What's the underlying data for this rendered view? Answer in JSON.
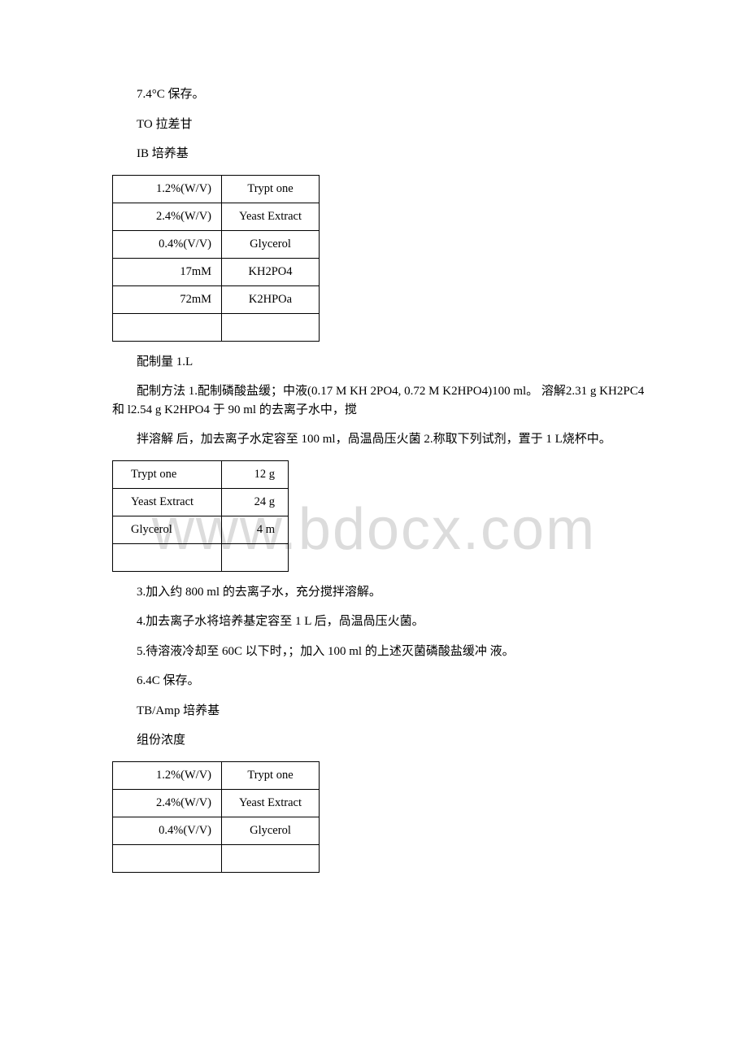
{
  "watermark": {
    "text": "www.bdocx.com",
    "color": "#dcdcdc",
    "fontsize": 72
  },
  "p1": "7.4°C 保存。",
  "p2": "TO 拉差甘",
  "p3": "IB 培养基",
  "table1": {
    "rows": [
      {
        "c1": "1.2%(W/V)",
        "c2": "Trypt one"
      },
      {
        "c1": "2.4%(W/V)",
        "c2": "Yeast Extract"
      },
      {
        "c1": "0.4%(V/V)",
        "c2": "Glycerol"
      },
      {
        "c1": "17mM",
        "c2": "KH2PO4"
      },
      {
        "c1": "72mM",
        "c2": "K2HPOa"
      },
      {
        "c1": "",
        "c2": ""
      }
    ]
  },
  "p4": "配制量 1.L",
  "p5": "配制方法 1.配制磷酸盐缓；中液(0.17 M KH 2PO4, 0.72 M K2HPO4)100 ml。 溶解2.31 g KH2PC4 和 l2.54 g K2HPO4 于 90 ml 的去离子水中，搅",
  "p6": "拌溶解 后，加去离子水定容至 100 ml，咼温咼压火菌 2.称取下列试剂，置于 1 L烧杯中。",
  "table2": {
    "rows": [
      {
        "c1": "Trypt one",
        "c2": "12 g"
      },
      {
        "c1": "Yeast Extract",
        "c2": "24 g"
      },
      {
        "c1": "Glycerol",
        "c2": "4 m"
      },
      {
        "c1": "",
        "c2": ""
      }
    ]
  },
  "p7": "3.加入约 800 ml 的去离子水，充分搅拌溶解。",
  "p8": "4.加去离子水将培养基定容至 1 L 后，咼温咼压火菌。",
  "p9": "5.待溶液冷却至 60C 以下时，；加入 100 ml 的上述灭菌磷酸盐缓冲 液。",
  "p10": "6.4C 保存。",
  "p11": "TB/Amp 培养基",
  "p12": "组份浓度",
  "table3": {
    "rows": [
      {
        "c1": "1.2%(W/V)",
        "c2": "Trypt one"
      },
      {
        "c1": "2.4%(W/V)",
        "c2": "Yeast Extract"
      },
      {
        "c1": "0.4%(V/V)",
        "c2": "Glycerol"
      },
      {
        "c1": "",
        "c2": ""
      }
    ]
  }
}
